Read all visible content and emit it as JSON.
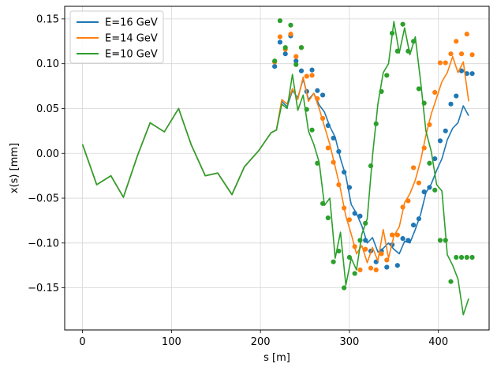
{
  "chart_data": {
    "type": "line",
    "title": "",
    "xlabel": "s [m]",
    "ylabel": "x(s) [mm]",
    "xlim": [
      -20,
      457
    ],
    "ylim": [
      -0.197,
      0.164
    ],
    "xticks": [
      0,
      100,
      200,
      300,
      400
    ],
    "yticks": [
      -0.15,
      -0.1,
      -0.05,
      0.0,
      0.05,
      0.1,
      0.15
    ],
    "xtick_labels": [
      "0",
      "100",
      "200",
      "300",
      "400"
    ],
    "ytick_labels": [
      "−0.15",
      "−0.10",
      "−0.05",
      "0.00",
      "0.05",
      "0.10",
      "0.15"
    ],
    "grid": true,
    "legend_position": "top-left",
    "shared_prefix_line": {
      "x": [
        0,
        16,
        32,
        46,
        62,
        76,
        92,
        108,
        122,
        138,
        152,
        168,
        182,
        198,
        212
      ],
      "y": [
        0.01,
        -0.035,
        -0.025,
        -0.049,
        -0.002,
        0.034,
        0.024,
        0.05,
        0.01,
        -0.025,
        -0.022,
        -0.046,
        -0.015,
        0.003,
        0.023
      ]
    },
    "series": [
      {
        "name": "E=16 GeV",
        "color": "#1f77b4",
        "line": {
          "x": [
            212,
            218,
            224,
            230,
            236,
            242,
            248,
            254,
            260,
            266,
            272,
            278,
            284,
            290,
            296,
            302,
            308,
            314,
            320,
            326,
            332,
            338,
            344,
            350,
            356,
            362,
            368,
            374,
            380,
            386,
            392,
            398,
            404,
            410,
            416,
            422,
            428,
            434
          ],
          "y": [
            0.023,
            0.026,
            0.058,
            0.052,
            0.07,
            0.062,
            0.083,
            0.06,
            0.067,
            0.054,
            0.046,
            0.03,
            0.018,
            -0.006,
            -0.025,
            -0.057,
            -0.067,
            -0.081,
            -0.1,
            -0.094,
            -0.11,
            -0.106,
            -0.1,
            -0.107,
            -0.112,
            -0.098,
            -0.1,
            -0.085,
            -0.068,
            -0.044,
            -0.034,
            -0.019,
            -0.006,
            0.015,
            0.028,
            0.034,
            0.053,
            0.042
          ]
        },
        "points": {
          "x": [
            216,
            222,
            228,
            234,
            240,
            246,
            252,
            258,
            264,
            270,
            276,
            282,
            288,
            294,
            300,
            306,
            312,
            318,
            324,
            330,
            336,
            342,
            348,
            354,
            360,
            366,
            372,
            378,
            384,
            390,
            396,
            402,
            408,
            414,
            420,
            426,
            432,
            438
          ],
          "y": [
            0.097,
            0.124,
            0.111,
            0.131,
            0.103,
            0.092,
            0.069,
            0.093,
            0.07,
            0.065,
            0.031,
            0.017,
            0.002,
            -0.021,
            -0.038,
            -0.067,
            -0.07,
            -0.097,
            -0.109,
            -0.121,
            -0.109,
            -0.127,
            -0.102,
            -0.125,
            -0.095,
            -0.097,
            -0.08,
            -0.073,
            -0.043,
            -0.038,
            -0.006,
            0.014,
            0.025,
            0.055,
            0.064,
            0.092,
            0.089,
            0.089
          ]
        }
      },
      {
        "name": "E=14 GeV",
        "color": "#ff7f0e",
        "line": {
          "x": [
            212,
            218,
            224,
            230,
            236,
            242,
            248,
            254,
            260,
            266,
            272,
            278,
            284,
            290,
            296,
            302,
            308,
            314,
            320,
            326,
            332,
            338,
            344,
            350,
            356,
            362,
            368,
            374,
            380,
            386,
            392,
            398,
            404,
            410,
            416,
            422,
            428,
            434
          ],
          "y": [
            0.023,
            0.026,
            0.06,
            0.055,
            0.072,
            0.06,
            0.085,
            0.058,
            0.067,
            0.05,
            0.03,
            0.01,
            -0.015,
            -0.04,
            -0.07,
            -0.09,
            -0.112,
            -0.103,
            -0.122,
            -0.105,
            -0.12,
            -0.085,
            -0.117,
            -0.092,
            -0.082,
            -0.055,
            -0.045,
            -0.03,
            -0.008,
            0.02,
            0.044,
            0.062,
            0.08,
            0.09,
            0.108,
            0.09,
            0.102,
            0.058
          ]
        },
        "points": {
          "x": [
            216,
            222,
            228,
            234,
            240,
            246,
            252,
            258,
            264,
            270,
            276,
            282,
            288,
            294,
            300,
            306,
            312,
            318,
            324,
            330,
            336,
            342,
            348,
            354,
            360,
            366,
            372,
            378,
            384,
            390,
            396,
            402,
            408,
            414,
            420,
            426,
            432,
            438
          ],
          "y": [
            0.102,
            0.13,
            0.116,
            0.133,
            0.108,
            0.118,
            0.086,
            0.087,
            0.061,
            0.039,
            0.006,
            -0.01,
            -0.035,
            -0.061,
            -0.074,
            -0.104,
            -0.13,
            -0.107,
            -0.128,
            -0.13,
            -0.112,
            -0.119,
            -0.091,
            -0.091,
            -0.06,
            -0.053,
            -0.016,
            -0.033,
            0.006,
            0.032,
            0.068,
            0.101,
            0.101,
            0.111,
            0.125,
            0.111,
            0.133,
            0.11
          ]
        }
      },
      {
        "name": "E=10 GeV",
        "color": "#2ca02c",
        "line": {
          "x": [
            212,
            218,
            224,
            230,
            236,
            242,
            248,
            254,
            260,
            266,
            272,
            278,
            284,
            290,
            296,
            302,
            308,
            314,
            320,
            326,
            332,
            338,
            344,
            350,
            356,
            362,
            368,
            374,
            380,
            386,
            392,
            398,
            404,
            410,
            416,
            422,
            428,
            434
          ],
          "y": [
            0.023,
            0.026,
            0.055,
            0.05,
            0.088,
            0.048,
            0.065,
            0.025,
            0.01,
            -0.01,
            -0.058,
            -0.05,
            -0.117,
            -0.088,
            -0.147,
            -0.117,
            -0.13,
            -0.09,
            -0.073,
            -0.003,
            0.055,
            0.09,
            0.1,
            0.147,
            0.112,
            0.14,
            0.11,
            0.13,
            0.08,
            0.025,
            0.002,
            -0.035,
            -0.042,
            -0.113,
            -0.125,
            -0.14,
            -0.18,
            -0.162
          ]
        },
        "points": {
          "x": [
            216,
            222,
            228,
            234,
            240,
            246,
            252,
            258,
            264,
            270,
            276,
            282,
            288,
            294,
            300,
            306,
            312,
            318,
            324,
            330,
            336,
            342,
            348,
            354,
            360,
            366,
            372,
            378,
            384,
            390,
            396,
            402,
            408,
            414,
            420,
            426,
            432,
            438
          ],
          "y": [
            0.103,
            0.148,
            0.118,
            0.143,
            0.099,
            0.118,
            0.049,
            0.026,
            -0.011,
            -0.056,
            -0.072,
            -0.121,
            -0.109,
            -0.15,
            -0.116,
            -0.134,
            -0.097,
            -0.078,
            -0.014,
            0.033,
            0.069,
            0.087,
            0.134,
            0.114,
            0.144,
            0.114,
            0.125,
            0.072,
            0.056,
            -0.011,
            -0.041,
            -0.097,
            -0.097,
            -0.143,
            -0.116,
            -0.116,
            -0.116,
            -0.116
          ]
        }
      }
    ]
  }
}
